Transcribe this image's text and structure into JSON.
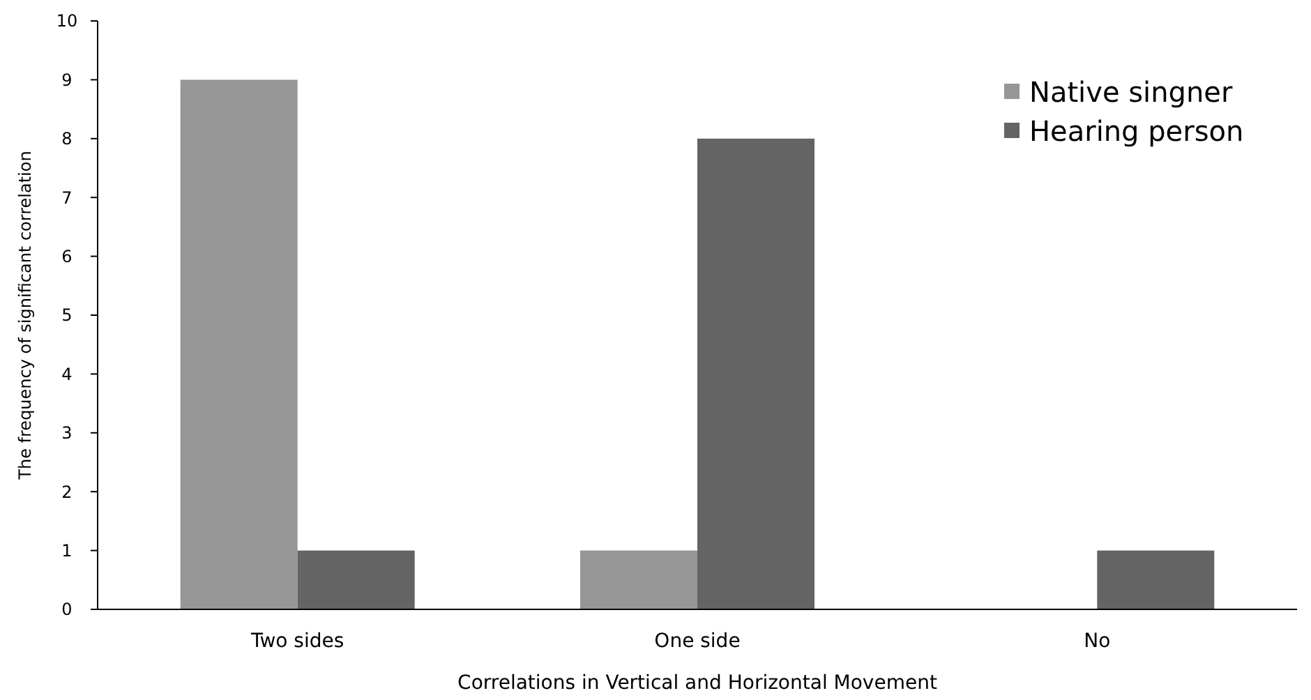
{
  "chart_data": {
    "type": "bar",
    "xlabel": "Correlations in Vertical and Horizontal Movement",
    "ylabel": "The frequency of significant correlation",
    "categories": [
      "Two sides",
      "One side",
      "No"
    ],
    "series": [
      {
        "name": "Native singner",
        "color": "#969696",
        "values": [
          9,
          1,
          0
        ]
      },
      {
        "name": "Hearing person",
        "color": "#646464",
        "values": [
          1,
          8,
          1
        ]
      }
    ],
    "ylim": [
      0,
      10
    ],
    "yticks": [
      0,
      1,
      2,
      3,
      4,
      5,
      6,
      7,
      8,
      9,
      10
    ],
    "grid": false,
    "legend": "top right"
  }
}
